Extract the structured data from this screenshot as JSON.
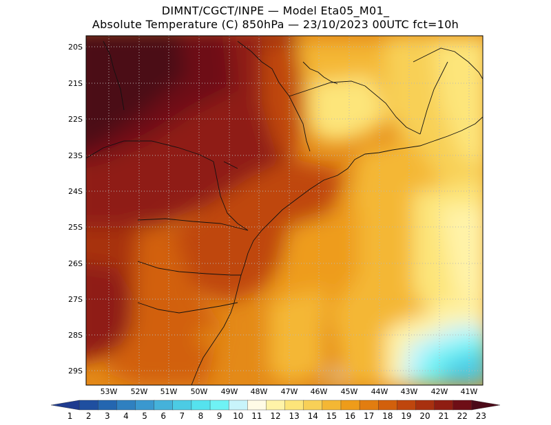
{
  "header": {
    "title_line1": "DIMNT/CGCT/INPE —  Model Eta05_M01_",
    "title_line2": "Absolute Temperature (C) 850hPa —  23/10/2023 00UTC fct=10h"
  },
  "map": {
    "lat_labels": [
      "20S",
      "21S",
      "22S",
      "23S",
      "24S",
      "25S",
      "26S",
      "27S",
      "28S",
      "29S"
    ],
    "lon_labels": [
      "53W",
      "52W",
      "51W",
      "50W",
      "49W",
      "48W",
      "47W",
      "46W",
      "45W",
      "44W",
      "43W",
      "42W",
      "41W"
    ]
  },
  "colorbar": {
    "labels": [
      "1",
      "2",
      "3",
      "4",
      "5",
      "6",
      "7",
      "8",
      "9",
      "10",
      "11",
      "12",
      "13",
      "14",
      "15",
      "16",
      "17",
      "18",
      "19",
      "20",
      "21",
      "22",
      "23"
    ],
    "colors": [
      "#1f3b8f",
      "#1f4fa0",
      "#2466b0",
      "#2f80c0",
      "#3a98cf",
      "#45b2da",
      "#4ccbe4",
      "#55e2ee",
      "#6ff2f5",
      "#c8f4fb",
      "#fffbe6",
      "#fff3a8",
      "#fde57a",
      "#f8d057",
      "#f4b734",
      "#ee9c1a",
      "#e27d10",
      "#d2600c",
      "#bf460d",
      "#a8300f",
      "#8f1d12",
      "#6e0e16",
      "#4b0a18"
    ]
  }
}
